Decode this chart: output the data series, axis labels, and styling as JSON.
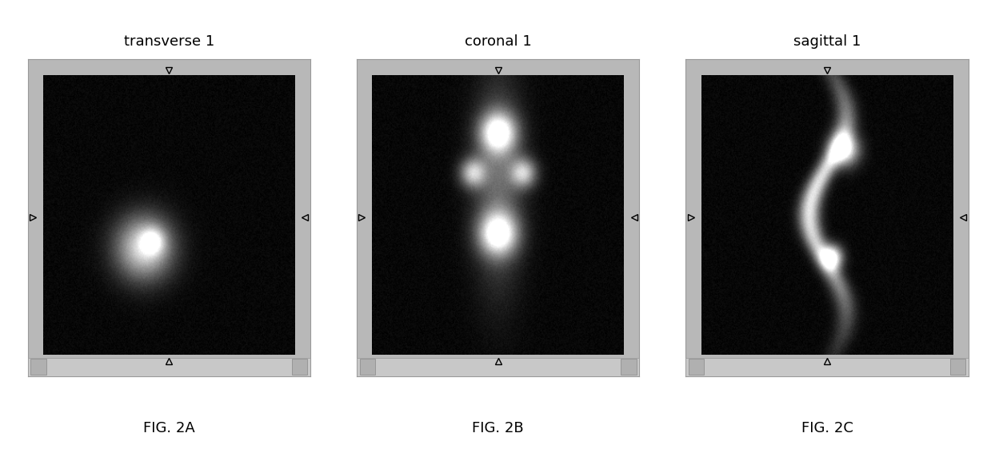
{
  "title_a": "transverse 1",
  "title_b": "coronal 1",
  "title_c": "sagittal 1",
  "caption_a": "FIG. 2A",
  "caption_b": "FIG. 2B",
  "caption_c": "FIG. 2C",
  "panel_bg": "#b8b8b8",
  "title_fontsize": 13,
  "caption_fontsize": 13
}
